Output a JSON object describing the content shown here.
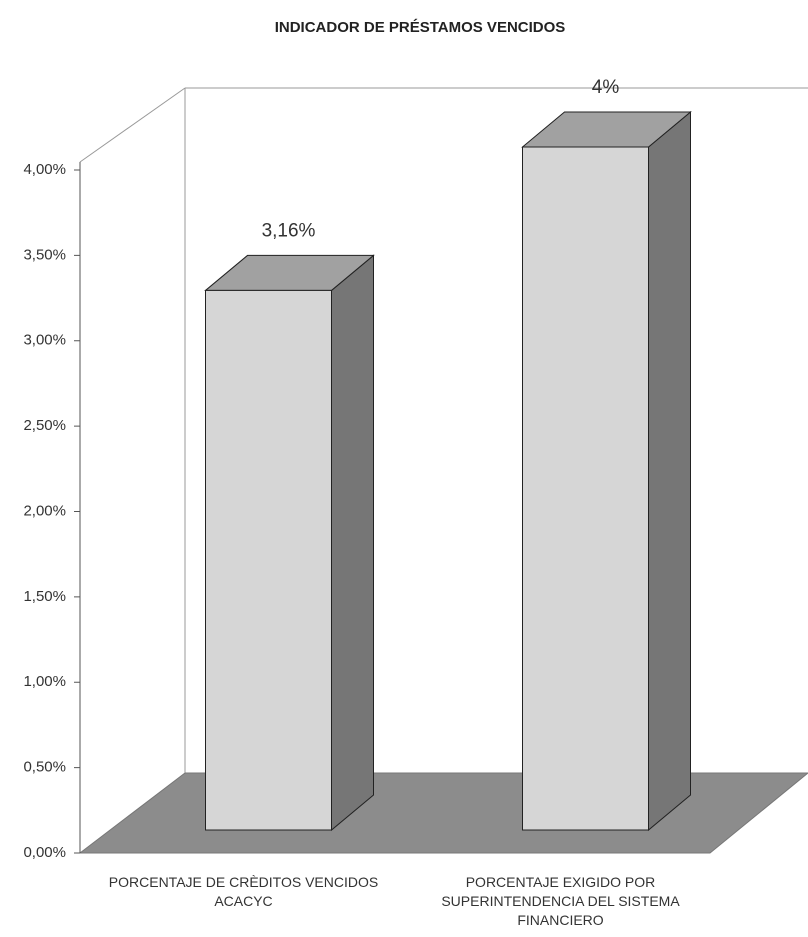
{
  "chart_data": {
    "type": "bar3d",
    "title": "INDICADOR DE PRÉSTAMOS VENCIDOS",
    "categories": [
      "PORCENTAJE DE CRÈDITOS VENCIDOS ACACYC",
      "PORCENTAJE EXIGIDO POR SUPERINTENDENCIA DEL SISTEMA FINANCIERO"
    ],
    "values": [
      3.16,
      4
    ],
    "value_labels": [
      "3,16%",
      "4%"
    ],
    "color": "#d6d6d6",
    "ylim": [
      0,
      4
    ],
    "yticks": [
      {
        "value": 0,
        "label": "0,00%"
      },
      {
        "value": 0.5,
        "label": "0,50%"
      },
      {
        "value": 1,
        "label": "1,00%"
      },
      {
        "value": 1.5,
        "label": "1,50%"
      },
      {
        "value": 2,
        "label": "2,00%"
      },
      {
        "value": 2.5,
        "label": "2,50%"
      },
      {
        "value": 3,
        "label": "3,00%"
      },
      {
        "value": 3.5,
        "label": "3,50%"
      },
      {
        "value": 4,
        "label": "4,00%"
      }
    ],
    "grid": false
  }
}
